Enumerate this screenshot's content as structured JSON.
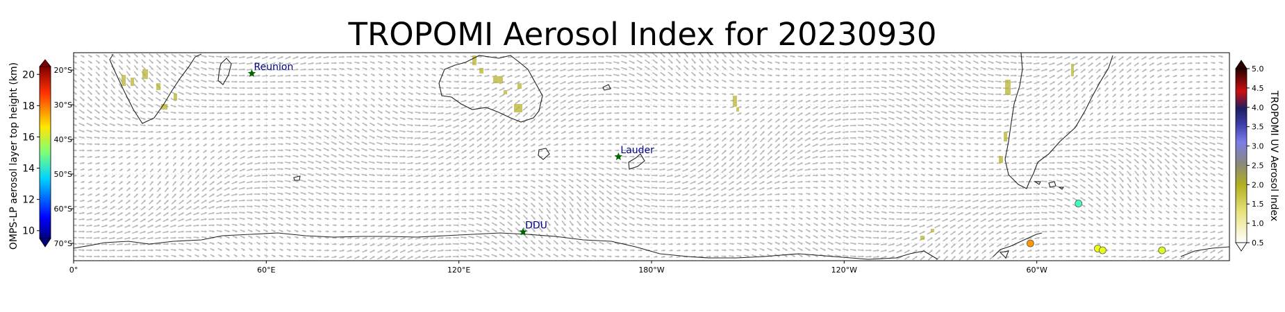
{
  "title": "TROPOMI Aerosol Index for 20230930",
  "map": {
    "projection": "PlateCarree",
    "lon_range": [
      0,
      360
    ],
    "lat_range": [
      -75,
      -15
    ],
    "lon_ticks": [
      {
        "lon": 0,
        "label": "0°"
      },
      {
        "lon": 60,
        "label": "60°E"
      },
      {
        "lon": 120,
        "label": "120°E"
      },
      {
        "lon": 180,
        "label": "180°W"
      },
      {
        "lon": 240,
        "label": "120°W"
      },
      {
        "lon": 300,
        "label": "60°W"
      }
    ],
    "lat_ticks": [
      {
        "lat": -20,
        "label": "20°S"
      },
      {
        "lat": -30,
        "label": "30°S"
      },
      {
        "lat": -40,
        "label": "40°S"
      },
      {
        "lat": -50,
        "label": "50°S"
      },
      {
        "lat": -60,
        "label": "60°S"
      },
      {
        "lat": -70,
        "label": "70°S"
      }
    ],
    "sites": [
      {
        "name": "Reunion",
        "lon": 55.5,
        "lat": -21.0
      },
      {
        "name": "Lauder",
        "lon": 169.7,
        "lat": -45.0
      },
      {
        "name": "DDU",
        "lon": 140.0,
        "lat": -66.7
      }
    ],
    "omps_points": [
      {
        "lon": 313,
        "lat": -58.5,
        "height_km": 14.3
      },
      {
        "lon": 298,
        "lat": -70.0,
        "height_km": 17.5
      },
      {
        "lon": 319,
        "lat": -71.5,
        "height_km": 16.2
      },
      {
        "lon": 320.5,
        "lat": -72.0,
        "height_km": 16.1
      },
      {
        "lon": 339,
        "lat": -72.0,
        "height_km": 16.0
      }
    ],
    "wind_vectors": "gray quiver field, westerly dominated",
    "colors": {
      "coast": "#222222",
      "sites": "#006400",
      "site_label": "#00008b",
      "wind": "#b8b8b8"
    }
  },
  "colorbar_left": {
    "label": "OMPS-LP aerosol layer top height (km)",
    "range": [
      9.5,
      20.5
    ],
    "ticks": [
      "10",
      "12",
      "14",
      "16",
      "18",
      "20"
    ],
    "cmap": "jet"
  },
  "colorbar_right": {
    "label": "TROPOMI UV Aerosol Index",
    "range": [
      0.5,
      5.0
    ],
    "ticks": [
      "0.5",
      "1.0",
      "1.5",
      "2.0",
      "2.5",
      "3.0",
      "3.5",
      "4.0",
      "4.5",
      "5.0"
    ],
    "cmap": "white-olive-blue-red-black"
  }
}
